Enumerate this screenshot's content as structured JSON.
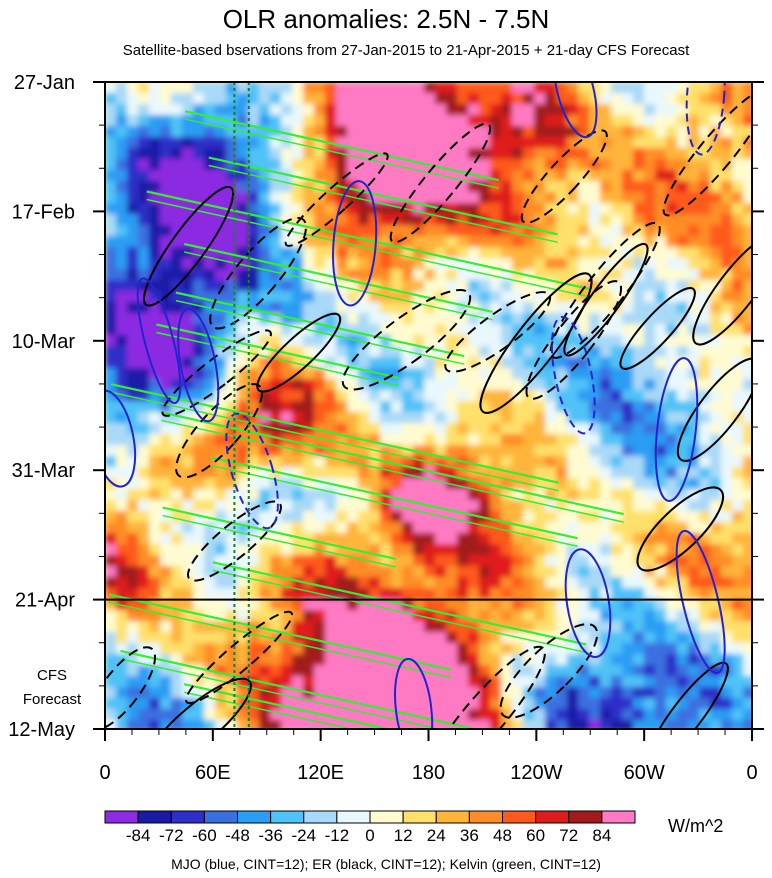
{
  "chart_data": {
    "type": "heatmap",
    "title": "OLR anomalies: 2.5N - 7.5N",
    "subtitle": "Satellite-based bservations from 27-Jan-2015 to 21-Apr-2015 + 21-day CFS Forecast",
    "x_ticks": [
      "0",
      "60E",
      "120E",
      "180",
      "120W",
      "60W",
      "0"
    ],
    "y_ticks": [
      "27-Jan",
      "17-Feb",
      "10-Mar",
      "31-Mar",
      "21-Apr",
      "12-May"
    ],
    "forecast_label": "CFS\nForecast",
    "forecast_start": "21-Apr",
    "reference_longitudes": [
      "72E",
      "80E"
    ],
    "colorbar": {
      "levels": [
        -84,
        -72,
        -60,
        -48,
        -36,
        -24,
        -12,
        0,
        12,
        24,
        36,
        48,
        60,
        72,
        84
      ],
      "colors": [
        "#8c2be2",
        "#1a1aa8",
        "#2e2ec8",
        "#3a6fe0",
        "#2a9df4",
        "#4fc2f7",
        "#a9d9f8",
        "#e9f8fc",
        "#fffbd0",
        "#ffe06a",
        "#ffb43a",
        "#ff8c28",
        "#ff5a1e",
        "#e01b1b",
        "#a31a1a",
        "#ff7ac2"
      ],
      "units": "W/m^2"
    },
    "contours": {
      "mjo": {
        "color": "#2323d0"
      },
      "er": {
        "color": "#000000"
      },
      "kelvin": {
        "color": "#33ee33"
      }
    },
    "footnote": "MJO (blue, CINT=12); ER (black, CINT=12); Kelvin (green, CINT=12)"
  }
}
